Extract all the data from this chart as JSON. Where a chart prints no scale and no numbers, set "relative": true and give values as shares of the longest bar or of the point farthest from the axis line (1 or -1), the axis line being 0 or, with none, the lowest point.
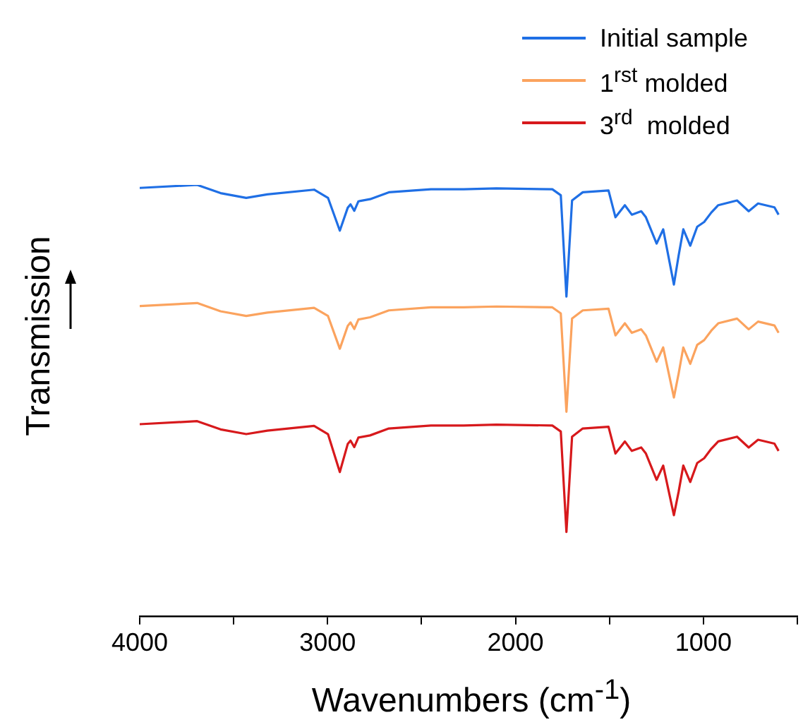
{
  "chart_data": {
    "type": "line",
    "relative": true,
    "xlabel": "Wavenumbers (cm$^{-1}$)",
    "ylabel": "Transmission",
    "legend": "top right",
    "xlim": [
      4000,
      500
    ],
    "xticks": [
      4000,
      {
        "value": 3500,
        "label": null
      },
      3000,
      {
        "value": 2500,
        "label": null
      },
      2000,
      {
        "value": 1500,
        "label": null
      },
      1000,
      {
        "value": 500,
        "label": null
      }
    ],
    "x": [
      4000,
      3694,
      3570,
      3433,
      3321,
      3072,
      2998,
      2935,
      2893,
      2878,
      2858,
      2836,
      2774,
      2674,
      2450,
      2276,
      2102,
      1804,
      1759,
      1729,
      1699,
      1642,
      1505,
      1468,
      1418,
      1381,
      1331,
      1306,
      1249,
      1214,
      1157,
      1132,
      1107,
      1070,
      1033,
      996,
      958,
      921,
      821,
      759,
      709,
      622,
      600
    ],
    "series": [
      {
        "name": "Initial sample",
        "color": "#1f6fe5",
        "values": [
          0.993,
          1.0,
          0.981,
          0.97,
          0.978,
          0.989,
          0.97,
          0.894,
          0.947,
          0.955,
          0.94,
          0.962,
          0.967,
          0.983,
          0.99,
          0.99,
          0.992,
          0.99,
          0.976,
          0.741,
          0.964,
          0.983,
          0.987,
          0.925,
          0.953,
          0.931,
          0.939,
          0.925,
          0.864,
          0.897,
          0.769,
          0.836,
          0.897,
          0.859,
          0.903,
          0.914,
          0.936,
          0.953,
          0.964,
          0.939,
          0.957,
          0.948,
          0.931
        ]
      },
      {
        "name": "1$^{rst}$ molded",
        "color": "#fba35e",
        "values": [
          0.719,
          0.726,
          0.707,
          0.696,
          0.704,
          0.715,
          0.696,
          0.62,
          0.673,
          0.681,
          0.666,
          0.688,
          0.693,
          0.709,
          0.716,
          0.716,
          0.718,
          0.716,
          0.702,
          0.474,
          0.69,
          0.709,
          0.713,
          0.651,
          0.679,
          0.657,
          0.665,
          0.651,
          0.59,
          0.623,
          0.507,
          0.562,
          0.623,
          0.585,
          0.629,
          0.64,
          0.662,
          0.679,
          0.69,
          0.665,
          0.683,
          0.674,
          0.657
        ]
      },
      {
        "name": "3$^{rd}$  molded",
        "color": "#d7191c",
        "values": [
          0.445,
          0.452,
          0.433,
          0.422,
          0.43,
          0.441,
          0.422,
          0.334,
          0.399,
          0.407,
          0.392,
          0.414,
          0.419,
          0.435,
          0.442,
          0.442,
          0.444,
          0.442,
          0.428,
          0.195,
          0.416,
          0.435,
          0.439,
          0.377,
          0.405,
          0.383,
          0.391,
          0.377,
          0.316,
          0.349,
          0.234,
          0.288,
          0.349,
          0.311,
          0.355,
          0.366,
          0.388,
          0.405,
          0.416,
          0.391,
          0.409,
          0.4,
          0.383
        ]
      }
    ]
  }
}
